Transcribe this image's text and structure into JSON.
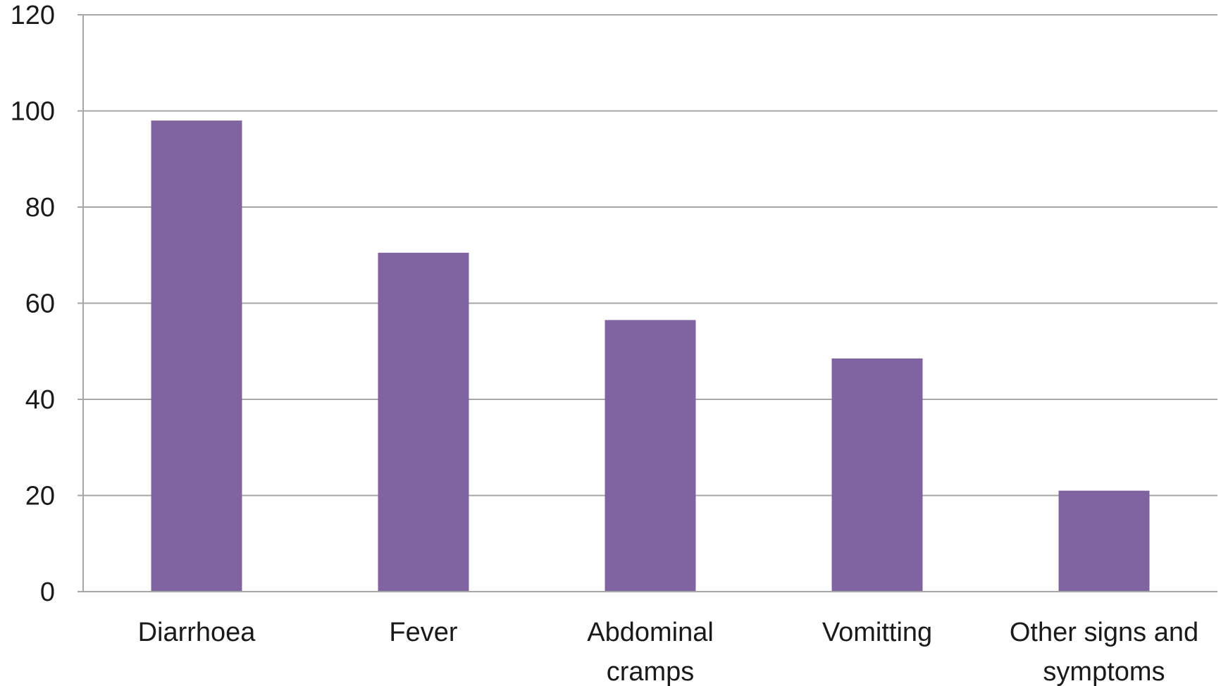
{
  "chart_data": {
    "type": "bar",
    "categories": [
      "Diarrhoea",
      "Fever",
      "Abdominal cramps",
      "Vomitting",
      "Other signs and symptoms"
    ],
    "category_lines": [
      [
        "Diarrhoea"
      ],
      [
        "Fever"
      ],
      [
        "Abdominal",
        "cramps"
      ],
      [
        "Vomitting"
      ],
      [
        "Other signs and",
        "symptoms"
      ]
    ],
    "values": [
      98,
      70.5,
      56.5,
      48.5,
      21
    ],
    "ylim": [
      0,
      120
    ],
    "yticks": [
      0,
      20,
      40,
      60,
      80,
      100,
      120
    ],
    "grid": true,
    "bar_color": "#8064a2",
    "title": "",
    "xlabel": "",
    "ylabel": ""
  }
}
